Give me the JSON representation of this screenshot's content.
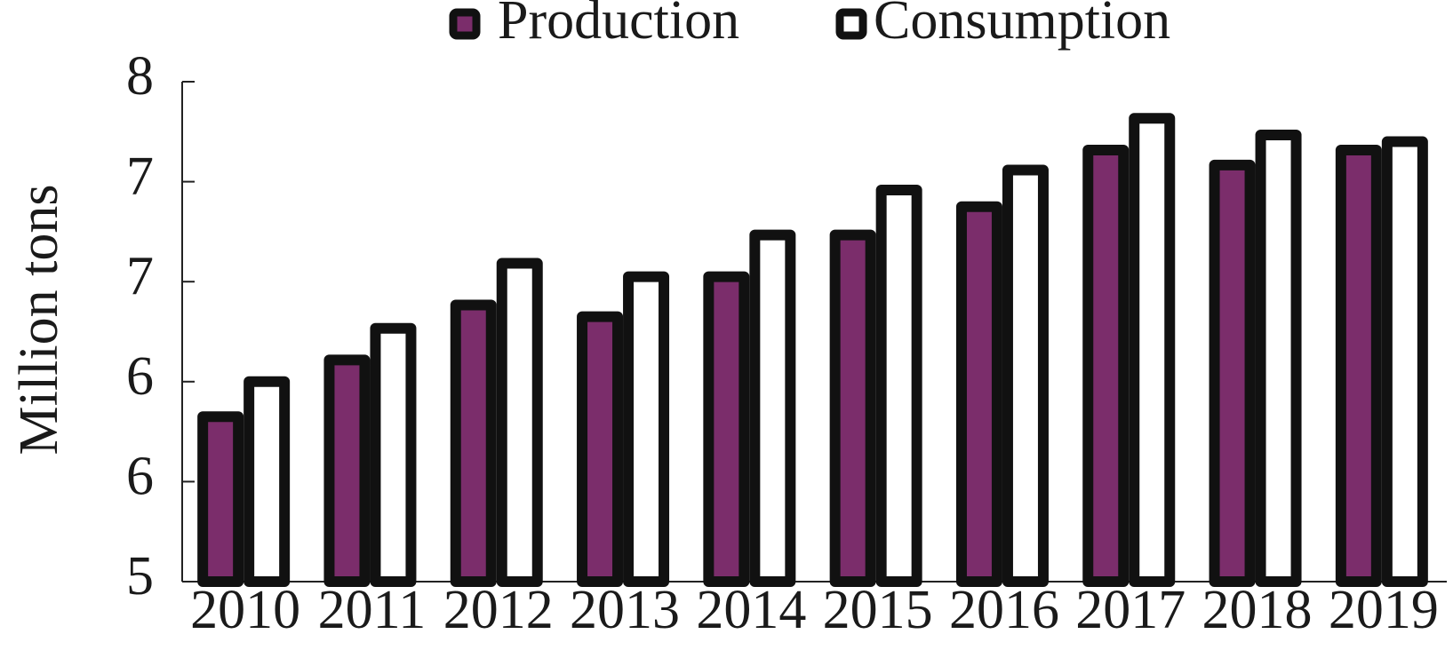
{
  "chart_data": {
    "type": "bar",
    "y_label": "Million tons",
    "categories": [
      "2010",
      "2011",
      "2012",
      "2013",
      "2014",
      "2015",
      "2016",
      "2017",
      "2018",
      "2019"
    ],
    "series": [
      {
        "name": "Production",
        "color": "#7b2d6b",
        "values": [
          5.99,
          6.33,
          6.66,
          6.59,
          6.83,
          7.08,
          7.25,
          7.59,
          7.5,
          7.59
        ]
      },
      {
        "name": "Consumption",
        "color": "#ffffff",
        "values": [
          6.2,
          6.52,
          6.91,
          6.83,
          7.08,
          7.35,
          7.47,
          7.78,
          7.68,
          7.64
        ]
      }
    ],
    "ylim": [
      5,
      8
    ],
    "yticks": [
      5,
      {
        "value": 5.6,
        "label": "6"
      },
      {
        "value": 6.2,
        "label": "6"
      },
      {
        "value": 6.8,
        "label": "7"
      },
      {
        "value": 7.4,
        "label": "7"
      },
      8
    ]
  }
}
